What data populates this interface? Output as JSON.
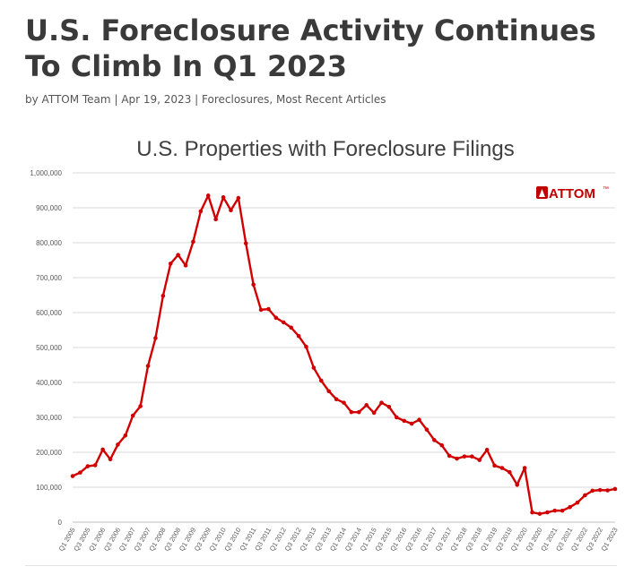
{
  "article": {
    "title": "U.S. Foreclosure Activity Continues To Climb In Q1 2023",
    "byline_prefix": "by",
    "author": "ATTOM Team",
    "separator": "|",
    "date": "Apr 19, 2023",
    "categories": "Foreclosures, Most Recent Articles"
  },
  "logo": {
    "text": "ATTOM",
    "mark": "™",
    "color": "#c00000"
  },
  "colors": {
    "line": "#d00000",
    "grid": "#d9d9d9",
    "axis_text": "#595959",
    "title": "#404040"
  },
  "chart_data": {
    "type": "line",
    "title": "U.S. Properties with Foreclosure Filings",
    "xlabel": "",
    "ylabel": "",
    "ylim": [
      0,
      1000000
    ],
    "yticks": [
      0,
      100000,
      200000,
      300000,
      400000,
      500000,
      600000,
      700000,
      800000,
      900000,
      1000000
    ],
    "ytick_labels": [
      "0",
      "100,000",
      "200,000",
      "300,000",
      "400,000",
      "500,000",
      "600,000",
      "700,000",
      "800,000",
      "900,000",
      "1,000,000"
    ],
    "grid": true,
    "legend": "none",
    "x_label_step": 2,
    "categories": [
      "Q1 2005",
      "Q2 2005",
      "Q3 2005",
      "Q4 2005",
      "Q1 2006",
      "Q2 2006",
      "Q3 2006",
      "Q4 2006",
      "Q1 2007",
      "Q2 2007",
      "Q3 2007",
      "Q4 2007",
      "Q1 2008",
      "Q2 2008",
      "Q3 2008",
      "Q4 2008",
      "Q1 2009",
      "Q2 2009",
      "Q3 2009",
      "Q4 2009",
      "Q1 2010",
      "Q2 2010",
      "Q3 2010",
      "Q4 2010",
      "Q1 2011",
      "Q2 2011",
      "Q3 2011",
      "Q4 2011",
      "Q1 2012",
      "Q2 2012",
      "Q3 2012",
      "Q4 2012",
      "Q1 2013",
      "Q2 2013",
      "Q3 2013",
      "Q4 2013",
      "Q1 2014",
      "Q2 2014",
      "Q3 2014",
      "Q4 2014",
      "Q1 2015",
      "Q2 2015",
      "Q3 2015",
      "Q4 2015",
      "Q1 2016",
      "Q2 2016",
      "Q3 2016",
      "Q4 2016",
      "Q1 2017",
      "Q2 2017",
      "Q3 2017",
      "Q4 2017",
      "Q1 2018",
      "Q2 2018",
      "Q3 2018",
      "Q4 2018",
      "Q1 2019",
      "Q2 2019",
      "Q3 2019",
      "Q4 2019",
      "Q1 2020",
      "Q2 2020",
      "Q3 2020",
      "Q4 2020",
      "Q1 2021",
      "Q2 2021",
      "Q3 2021",
      "Q4 2021",
      "Q1 2022",
      "Q2 2022",
      "Q3 2022",
      "Q4 2022",
      "Q1 2023"
    ],
    "x_tick_labels": [
      "Q1 2005",
      "Q3 2005",
      "Q1 2006",
      "Q3 2006",
      "Q1 2007",
      "Q3 2007",
      "Q1 2008",
      "Q3 2008",
      "Q1 2009",
      "Q3 2009",
      "Q1 2010",
      "Q3 2010",
      "Q1 2011",
      "Q3 2011",
      "Q1 2012",
      "Q3 2012",
      "Q1 2013",
      "Q3 2013",
      "Q1 2014",
      "Q3 2014",
      "Q1 2015",
      "Q3 2015",
      "Q1 2016",
      "Q3 2016",
      "Q1 2017",
      "Q3 2017",
      "Q1 2018",
      "Q3 2018",
      "Q1 2019",
      "Q3 2019",
      "Q1 2020",
      "Q3 2020",
      "Q1 2021",
      "Q3 2021",
      "Q1 2022",
      "Q3 2022",
      "Q1 2023"
    ],
    "series": [
      {
        "color": "#d00000",
        "values": [
          132000,
          142000,
          160000,
          163000,
          208000,
          180000,
          222000,
          248000,
          305000,
          332000,
          447000,
          527000,
          648000,
          740000,
          765000,
          735000,
          803000,
          890000,
          935000,
          867000,
          930000,
          893000,
          928000,
          798000,
          680000,
          608000,
          610000,
          585000,
          572000,
          557000,
          533000,
          502000,
          442000,
          405000,
          375000,
          352000,
          342000,
          315000,
          315000,
          335000,
          313000,
          342000,
          330000,
          300000,
          290000,
          282000,
          293000,
          265000,
          235000,
          220000,
          190000,
          182000,
          188000,
          188000,
          178000,
          207000,
          162000,
          155000,
          143000,
          107000,
          155000,
          28000,
          24000,
          28000,
          33000,
          33000,
          43000,
          56000,
          77000,
          90000,
          92000,
          91000,
          95000
        ]
      }
    ]
  }
}
